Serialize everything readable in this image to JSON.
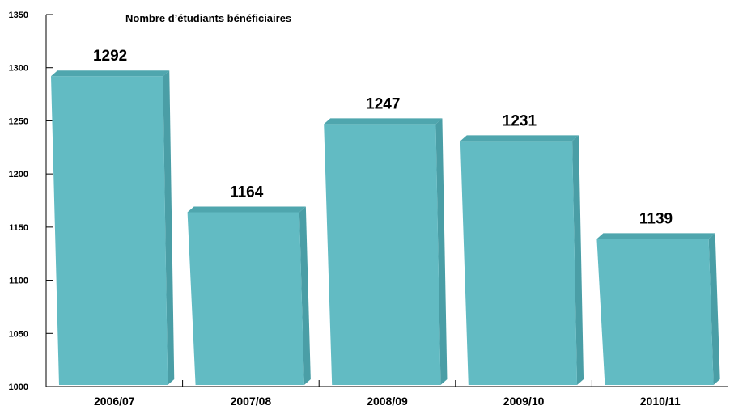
{
  "chart_data": {
    "type": "bar",
    "title": "Nombre d’étudiants bénéficiaires",
    "xlabel": "",
    "ylabel": "",
    "categories": [
      "2006/07",
      "2007/08",
      "2008/09",
      "2009/10",
      "2010/11"
    ],
    "values": [
      1292,
      1164,
      1247,
      1231,
      1139
    ],
    "ylim": [
      1000,
      1350
    ],
    "yticks": [
      1000,
      1050,
      1100,
      1150,
      1200,
      1250,
      1300,
      1350
    ],
    "grid": false,
    "legend": "none",
    "colors": {
      "bar_front": "#62BBC3",
      "bar_top": "#4FA6AE",
      "bar_side": "#4A9EA6",
      "axis": "#000000"
    }
  }
}
